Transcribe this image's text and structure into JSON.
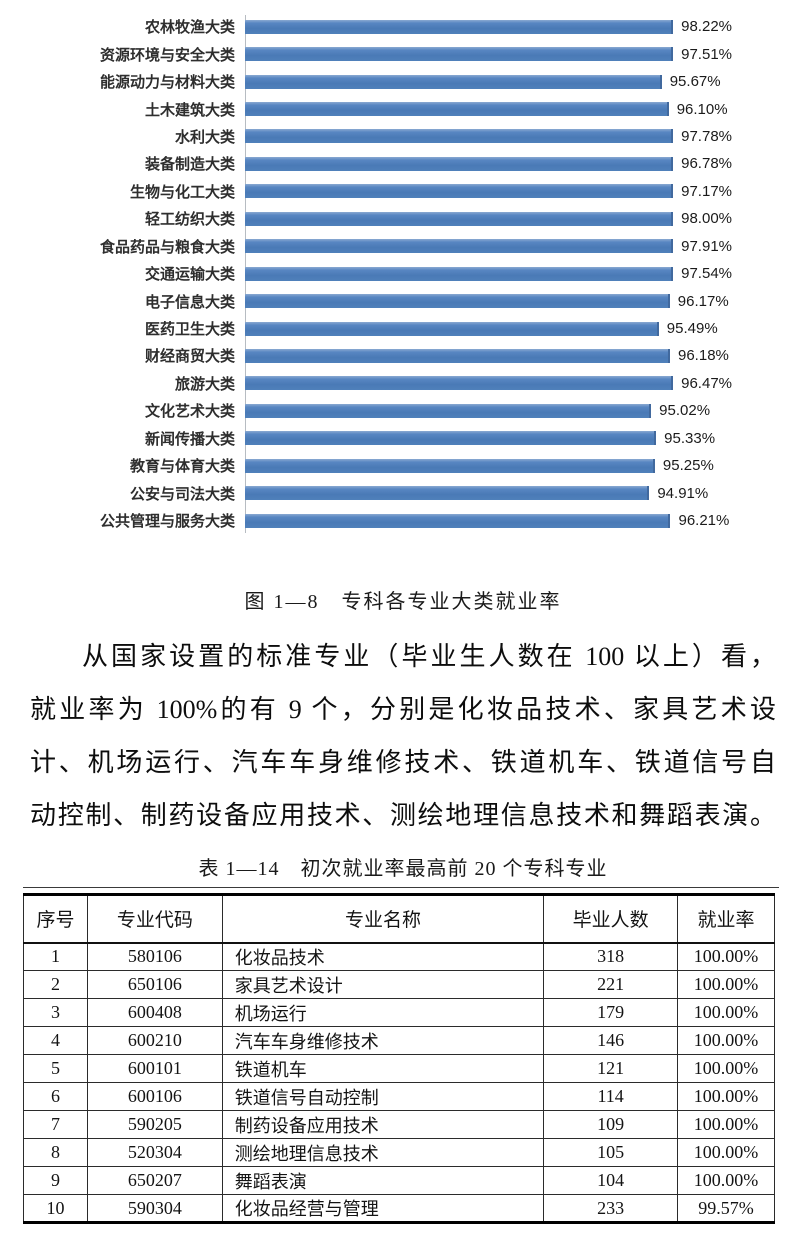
{
  "colors": {
    "bar": "#4f81bd",
    "axis": "#b7bcc2",
    "text": "#111111",
    "table_border": "#000000"
  },
  "chart_data": {
    "type": "bar",
    "orientation": "horizontal",
    "title": "专科各专业大类就业率",
    "xlabel": "",
    "ylabel": "",
    "grid": false,
    "legend": false,
    "value_suffix": "%",
    "xlim_estimated": [
      70,
      100
    ],
    "categories": [
      "农林牧渔大类",
      "资源环境与安全大类",
      "能源动力与材料大类",
      "土木建筑大类",
      "水利大类",
      "装备制造大类",
      "生物与化工大类",
      "轻工纺织大类",
      "食品药品与粮食大类",
      "交通运输大类",
      "电子信息大类",
      "医药卫生大类",
      "财经商贸大类",
      "旅游大类",
      "文化艺术大类",
      "新闻传播大类",
      "教育与体育大类",
      "公安与司法大类",
      "公共管理与服务大类"
    ],
    "values": [
      98.22,
      97.51,
      95.67,
      96.1,
      97.78,
      96.78,
      97.17,
      98.0,
      97.91,
      97.54,
      96.17,
      95.49,
      96.18,
      96.47,
      95.02,
      95.33,
      95.25,
      94.91,
      96.21
    ],
    "value_labels": [
      "98.22%",
      "97.51%",
      "95.67%",
      "96.10%",
      "97.78%",
      "96.78%",
      "97.17%",
      "98.00%",
      "97.91%",
      "97.54%",
      "96.17%",
      "95.49%",
      "96.18%",
      "96.47%",
      "95.02%",
      "95.33%",
      "95.25%",
      "94.91%",
      "96.21%"
    ]
  },
  "figure": {
    "caption": "图 1—8　专科各专业大类就业率"
  },
  "paragraph": {
    "lines": [
      "从国家设置的标准专业（毕业生人数在 100 以上）看，",
      "就业率为 100%的有 9 个，分别是化妆品技术、家具艺术设",
      "计、机场运行、汽车车身维修技术、铁道机车、铁道信号自",
      "动控制、制药设备应用技术、测绘地理信息技术和舞蹈表演。"
    ]
  },
  "table": {
    "title": "表 1—14　初次就业率最高前 20 个专科专业",
    "headers": [
      "序号",
      "专业代码",
      "专业名称",
      "毕业人数",
      "就业率"
    ],
    "rows": [
      [
        "1",
        "580106",
        "化妆品技术",
        "318",
        "100.00%"
      ],
      [
        "2",
        "650106",
        "家具艺术设计",
        "221",
        "100.00%"
      ],
      [
        "3",
        "600408",
        "机场运行",
        "179",
        "100.00%"
      ],
      [
        "4",
        "600210",
        "汽车车身维修技术",
        "146",
        "100.00%"
      ],
      [
        "5",
        "600101",
        "铁道机车",
        "121",
        "100.00%"
      ],
      [
        "6",
        "600106",
        "铁道信号自动控制",
        "114",
        "100.00%"
      ],
      [
        "7",
        "590205",
        "制药设备应用技术",
        "109",
        "100.00%"
      ],
      [
        "8",
        "520304",
        "测绘地理信息技术",
        "105",
        "100.00%"
      ],
      [
        "9",
        "650207",
        "舞蹈表演",
        "104",
        "100.00%"
      ],
      [
        "10",
        "590304",
        "化妆品经营与管理",
        "233",
        "99.57%"
      ]
    ]
  }
}
